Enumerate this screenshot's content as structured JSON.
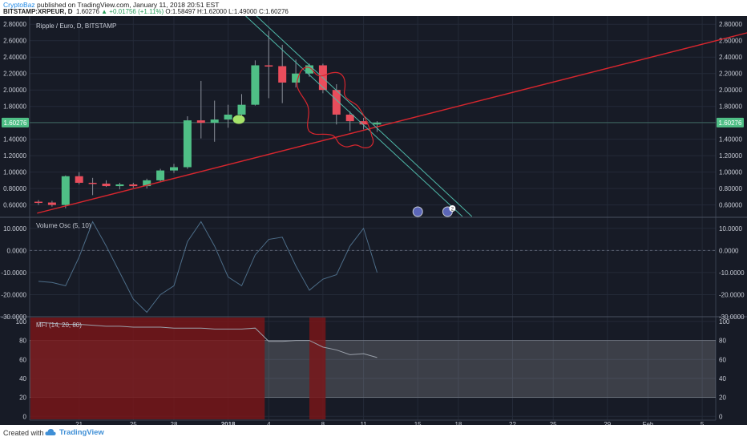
{
  "header": {
    "author": "CryptoBaz",
    "published": " published on TradingView.com, January 11, 2018 20:51 EST",
    "symbol": "BITSTAMP:XRPEUR, D",
    "last": "1.60276",
    "change": "▲ +0.01756 (+1.11%)",
    "ohlc": "O:1.58497 H:1.62000 L:1.49000 C:1.60276"
  },
  "footer": {
    "created_with": "Created with",
    "brand": "TradingView"
  },
  "colors": {
    "background": "#171b26",
    "up": "#4fbf86",
    "down": "#e94d5c",
    "trendline_red": "#d7262e",
    "trendline_teal": "#4fb8a8",
    "oscillator": "#4d6d88",
    "price_tag": "#4fbf86",
    "mfi_zone": "#7a1618"
  },
  "chart_data": [
    {
      "type": "candlestick",
      "title": "Ripple / Euro, D, BITSTAMP",
      "ylim": [
        0.45,
        2.9
      ],
      "yticks": [
        "0.60000",
        "0.80000",
        "1.00000",
        "1.20000",
        "1.40000",
        "1.60000",
        "1.80000",
        "2.00000",
        "2.20000",
        "2.40000",
        "2.60000",
        "2.80000"
      ],
      "current_price_label": "1.60276",
      "current_price": 1.60276,
      "x_ticks": [
        {
          "day": 21,
          "label": "21"
        },
        {
          "day": 25,
          "label": "25"
        },
        {
          "day": 28,
          "label": "28"
        },
        {
          "day": 32,
          "label": "2018"
        },
        {
          "day": 35,
          "label": "4"
        },
        {
          "day": 39,
          "label": "8"
        },
        {
          "day": 42,
          "label": "11"
        },
        {
          "day": 46,
          "label": "15"
        },
        {
          "day": 49,
          "label": "18"
        },
        {
          "day": 53,
          "label": "22"
        },
        {
          "day": 56,
          "label": "25"
        },
        {
          "day": 60,
          "label": "29"
        },
        {
          "day": 63,
          "label": "Feb"
        },
        {
          "day": 67,
          "label": "5"
        }
      ],
      "candles": [
        {
          "date": "Dec 18",
          "o": 0.64,
          "h": 0.66,
          "l": 0.6,
          "c": 0.63
        },
        {
          "date": "Dec 19",
          "o": 0.63,
          "h": 0.65,
          "l": 0.58,
          "c": 0.6
        },
        {
          "date": "Dec 20",
          "o": 0.6,
          "h": 0.96,
          "l": 0.56,
          "c": 0.95
        },
        {
          "date": "Dec 21",
          "o": 0.95,
          "h": 1.0,
          "l": 0.85,
          "c": 0.87
        },
        {
          "date": "Dec 22",
          "o": 0.87,
          "h": 0.93,
          "l": 0.72,
          "c": 0.86
        },
        {
          "date": "Dec 23",
          "o": 0.86,
          "h": 0.9,
          "l": 0.82,
          "c": 0.83
        },
        {
          "date": "Dec 24",
          "o": 0.83,
          "h": 0.87,
          "l": 0.79,
          "c": 0.85
        },
        {
          "date": "Dec 25",
          "o": 0.85,
          "h": 0.87,
          "l": 0.81,
          "c": 0.83
        },
        {
          "date": "Dec 26",
          "o": 0.83,
          "h": 0.92,
          "l": 0.8,
          "c": 0.9
        },
        {
          "date": "Dec 27",
          "o": 0.9,
          "h": 1.04,
          "l": 0.88,
          "c": 1.02
        },
        {
          "date": "Dec 28",
          "o": 1.02,
          "h": 1.1,
          "l": 0.99,
          "c": 1.06
        },
        {
          "date": "Dec 29",
          "o": 1.06,
          "h": 1.68,
          "l": 1.04,
          "c": 1.63
        },
        {
          "date": "Dec 30",
          "o": 1.63,
          "h": 2.11,
          "l": 1.41,
          "c": 1.6
        },
        {
          "date": "Dec 31",
          "o": 1.6,
          "h": 1.87,
          "l": 1.37,
          "c": 1.64
        },
        {
          "date": "Jan 1",
          "o": 1.64,
          "h": 1.82,
          "l": 1.54,
          "c": 1.7
        },
        {
          "date": "Jan 2",
          "o": 1.7,
          "h": 1.95,
          "l": 1.63,
          "c": 1.82
        },
        {
          "date": "Jan 3",
          "o": 1.82,
          "h": 2.36,
          "l": 1.81,
          "c": 2.3
        },
        {
          "date": "Jan 4",
          "o": 2.3,
          "h": 2.72,
          "l": 1.9,
          "c": 2.29
        },
        {
          "date": "Jan 5",
          "o": 2.29,
          "h": 2.55,
          "l": 1.84,
          "c": 2.09
        },
        {
          "date": "Jan 6",
          "o": 2.09,
          "h": 2.37,
          "l": 2.03,
          "c": 2.2
        },
        {
          "date": "Jan 7",
          "o": 2.2,
          "h": 2.32,
          "l": 2.16,
          "c": 2.3
        },
        {
          "date": "Jan 8",
          "o": 2.3,
          "h": 2.32,
          "l": 1.96,
          "c": 2.0
        },
        {
          "date": "Jan 9",
          "o": 2.0,
          "h": 2.07,
          "l": 1.58,
          "c": 1.7
        },
        {
          "date": "Jan 10",
          "o": 1.7,
          "h": 1.74,
          "l": 1.5,
          "c": 1.62
        },
        {
          "date": "Jan 11",
          "o": 1.62,
          "h": 1.66,
          "l": 1.52,
          "c": 1.58
        },
        {
          "date": "Jan 12",
          "o": 1.58,
          "h": 1.62,
          "l": 1.49,
          "c": 1.6
        }
      ],
      "trendlines": [
        {
          "color": "red",
          "from": {
            "day": 17.9,
            "y": 0.5
          },
          "to": {
            "day": 72.8,
            "y": 2.8
          }
        },
        {
          "color": "teal",
          "from": {
            "day": 34.1,
            "y": 2.9
          },
          "to": {
            "day": 50.0,
            "y": 0.46
          }
        },
        {
          "color": "teal",
          "from": {
            "day": 33.3,
            "y": 2.9
          },
          "to": {
            "day": 49.3,
            "y": 0.46
          }
        }
      ],
      "marker_badges": [
        {
          "day": 46,
          "label": ""
        },
        {
          "day": 48.2,
          "label": "2"
        }
      ]
    },
    {
      "type": "line",
      "title": "Volume Osc (5, 10)",
      "ylim": [
        -30,
        15
      ],
      "yticks": [
        "10.0000",
        "0.0000",
        "-10.0000",
        "-20.0000",
        "-30.0000"
      ],
      "zero_line": 0,
      "x": [
        18,
        19,
        20,
        21,
        22,
        23,
        24,
        25,
        26,
        27,
        28,
        29,
        30,
        31,
        32,
        33,
        34,
        35,
        36,
        37,
        38,
        39,
        40,
        41,
        42,
        43
      ],
      "values": [
        -14,
        -14.5,
        -16,
        -3,
        13,
        2,
        -10,
        -22,
        -28,
        -20,
        -16,
        4,
        13,
        2,
        -12,
        -16,
        -2,
        5,
        6,
        -7,
        -18,
        -13,
        -11,
        2,
        10,
        -10
      ]
    },
    {
      "type": "line",
      "title": "MFI (14, 20, 80)",
      "ylim": [
        -4,
        105
      ],
      "yticks": [
        "100",
        "80",
        "60",
        "40",
        "20",
        "0"
      ],
      "band": [
        20,
        80
      ],
      "x": [
        18,
        19,
        20,
        21,
        22,
        23,
        24,
        25,
        26,
        27,
        28,
        29,
        30,
        31,
        32,
        33,
        34,
        35,
        36,
        37,
        38,
        39,
        40,
        41,
        42,
        43
      ],
      "values": [
        99,
        98,
        97,
        97,
        96,
        95,
        95,
        94,
        94,
        94,
        93,
        93,
        93,
        92,
        92,
        92,
        93,
        79,
        79,
        80,
        80,
        73,
        70,
        65,
        66,
        62
      ],
      "highlight_ranges": [
        [
          17.4,
          34.7
        ],
        [
          38.0,
          39.2
        ]
      ]
    }
  ]
}
